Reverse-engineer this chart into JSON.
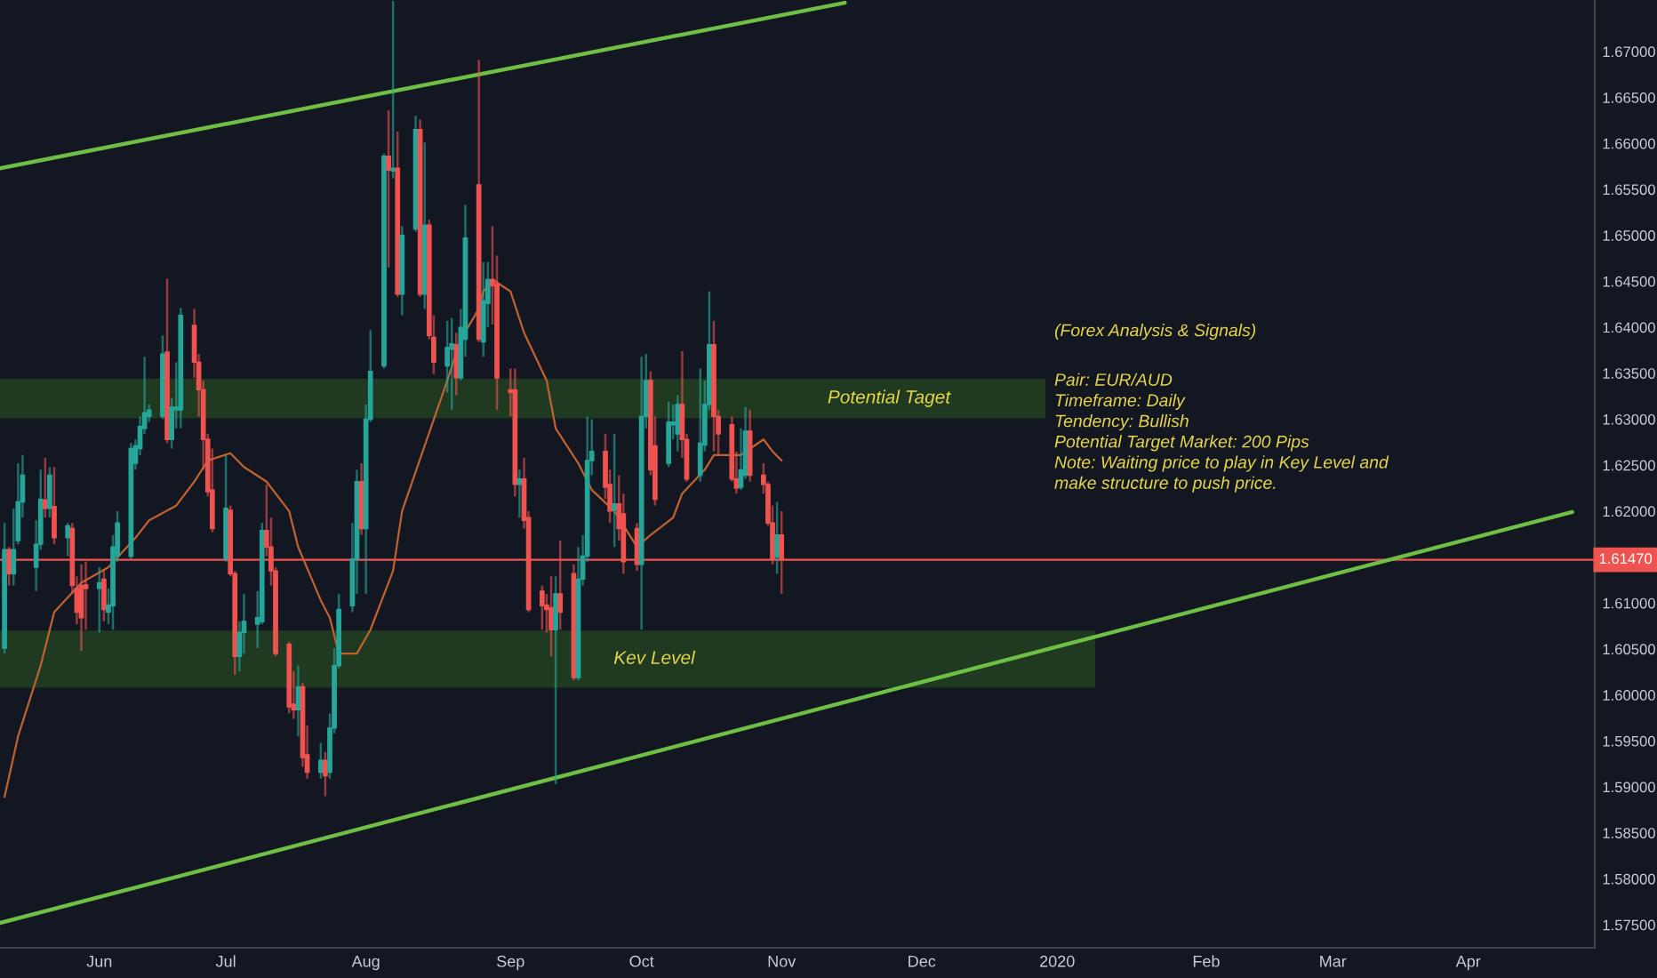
{
  "chart_data": {
    "type": "candlestick",
    "x": [
      "2019-05-13",
      "2019-05-14",
      "2019-05-15",
      "2019-05-16",
      "2019-05-17",
      "2019-05-20",
      "2019-05-21",
      "2019-05-22",
      "2019-05-23",
      "2019-05-24",
      "2019-05-27",
      "2019-05-28",
      "2019-05-29",
      "2019-05-30",
      "2019-05-31",
      "2019-06-03",
      "2019-06-04",
      "2019-06-05",
      "2019-06-06",
      "2019-06-07",
      "2019-06-10",
      "2019-06-11",
      "2019-06-12",
      "2019-06-13",
      "2019-06-14",
      "2019-06-17",
      "2019-06-18",
      "2019-06-19",
      "2019-06-20",
      "2019-06-21",
      "2019-06-24",
      "2019-06-25",
      "2019-06-26",
      "2019-06-27",
      "2019-06-28",
      "2019-07-01",
      "2019-07-02",
      "2019-07-03",
      "2019-07-04",
      "2019-07-05",
      "2019-07-08",
      "2019-07-09",
      "2019-07-10",
      "2019-07-11",
      "2019-07-12",
      "2019-07-15",
      "2019-07-16",
      "2019-07-17",
      "2019-07-18",
      "2019-07-19",
      "2019-07-22",
      "2019-07-23",
      "2019-07-24",
      "2019-07-25",
      "2019-07-26",
      "2019-07-29",
      "2019-07-30",
      "2019-07-31",
      "2019-08-01",
      "2019-08-02",
      "2019-08-05",
      "2019-08-06",
      "2019-08-07",
      "2019-08-08",
      "2019-08-09",
      "2019-08-12",
      "2019-08-13",
      "2019-08-14",
      "2019-08-15",
      "2019-08-16",
      "2019-08-19",
      "2019-08-20",
      "2019-08-21",
      "2019-08-22",
      "2019-08-23",
      "2019-08-26",
      "2019-08-27",
      "2019-08-28",
      "2019-08-29",
      "2019-08-30",
      "2019-09-02",
      "2019-09-03",
      "2019-09-04",
      "2019-09-05",
      "2019-09-06",
      "2019-09-09",
      "2019-09-10",
      "2019-09-11",
      "2019-09-12",
      "2019-09-13",
      "2019-09-16",
      "2019-09-17",
      "2019-09-18",
      "2019-09-19",
      "2019-09-20",
      "2019-09-23",
      "2019-09-24",
      "2019-09-25",
      "2019-09-26",
      "2019-09-27",
      "2019-09-30",
      "2019-10-01",
      "2019-10-02",
      "2019-10-03",
      "2019-10-04",
      "2019-10-07",
      "2019-10-08",
      "2019-10-09",
      "2019-10-10",
      "2019-10-11",
      "2019-10-14",
      "2019-10-15",
      "2019-10-16",
      "2019-10-17",
      "2019-10-18",
      "2019-10-21",
      "2019-10-22",
      "2019-10-23",
      "2019-10-24",
      "2019-10-25",
      "2019-10-28",
      "2019-10-29",
      "2019-10-30",
      "2019-10-31",
      "2019-11-01"
    ],
    "ohlc": [
      [
        1.6051,
        1.6187,
        1.6045,
        1.6158
      ],
      [
        1.6158,
        1.6161,
        1.6119,
        1.6132
      ],
      [
        1.6132,
        1.6203,
        1.6119,
        1.6158
      ],
      [
        1.6168,
        1.6252,
        1.6164,
        1.621
      ],
      [
        1.621,
        1.6261,
        1.6193,
        1.6239
      ],
      [
        1.6139,
        1.619,
        1.6113,
        1.6164
      ],
      [
        1.6164,
        1.6245,
        1.6158,
        1.6213
      ],
      [
        1.6212,
        1.6258,
        1.6193,
        1.6203
      ],
      [
        1.6203,
        1.6248,
        1.6193,
        1.6239
      ],
      [
        1.6205,
        1.6248,
        1.6164,
        1.6171
      ],
      [
        1.6171,
        1.6187,
        1.6151,
        1.6184
      ],
      [
        1.6181,
        1.6187,
        1.611,
        1.6119
      ],
      [
        1.6116,
        1.6129,
        1.6077,
        1.609
      ],
      [
        1.6119,
        1.6142,
        1.6048,
        1.6084
      ],
      [
        1.612,
        1.6145,
        1.6071,
        1.6116
      ],
      [
        1.6116,
        1.6139,
        1.6068,
        1.6122
      ],
      [
        1.6126,
        1.6135,
        1.608,
        1.6093
      ],
      [
        1.609,
        1.6116,
        1.6077,
        1.6098
      ],
      [
        1.6097,
        1.6174,
        1.6071,
        1.6161
      ],
      [
        1.6151,
        1.62,
        1.6145,
        1.6187
      ],
      [
        1.6151,
        1.6274,
        1.6148,
        1.6268
      ],
      [
        1.6252,
        1.6278,
        1.6245,
        1.6271
      ],
      [
        1.6268,
        1.6303,
        1.6261,
        1.6292
      ],
      [
        1.629,
        1.6368,
        1.6284,
        1.6307
      ],
      [
        1.6303,
        1.6316,
        1.6297,
        1.631
      ],
      [
        1.6303,
        1.6391,
        1.63,
        1.6371
      ],
      [
        1.6373,
        1.6453,
        1.6274,
        1.6278
      ],
      [
        1.6278,
        1.6323,
        1.6268,
        1.6313
      ],
      [
        1.631,
        1.6362,
        1.629,
        1.6313
      ],
      [
        1.631,
        1.6421,
        1.629,
        1.6413
      ],
      [
        1.6402,
        1.642,
        1.6345,
        1.6362
      ],
      [
        1.6362,
        1.6371,
        1.6303,
        1.6332
      ],
      [
        1.6332,
        1.6342,
        1.6245,
        1.6278
      ],
      [
        1.6278,
        1.6284,
        1.6216,
        1.6221
      ],
      [
        1.6223,
        1.6268,
        1.6177,
        1.6181
      ],
      [
        1.6148,
        1.6261,
        1.6145,
        1.6203
      ],
      [
        1.6201,
        1.6206,
        1.6129,
        1.6132
      ],
      [
        1.6132,
        1.6135,
        1.6022,
        1.6042
      ],
      [
        1.6042,
        1.608,
        1.6026,
        1.6068
      ],
      [
        1.6068,
        1.611,
        1.6045,
        1.608
      ],
      [
        1.6077,
        1.6113,
        1.6051,
        1.6084
      ],
      [
        1.608,
        1.6187,
        1.6077,
        1.6179
      ],
      [
        1.6179,
        1.6229,
        1.6151,
        1.6161
      ],
      [
        1.6161,
        1.6193,
        1.6119,
        1.6135
      ],
      [
        1.6135,
        1.6139,
        1.6042,
        1.6045
      ],
      [
        1.6055,
        1.6058,
        1.598,
        1.5987
      ],
      [
        1.599,
        1.6026,
        1.5974,
        1.5984
      ],
      [
        1.5984,
        1.6032,
        1.5955,
        1.6009
      ],
      [
        1.6009,
        1.6013,
        1.5922,
        1.5932
      ],
      [
        1.5935,
        1.5967,
        1.5909,
        1.5916
      ],
      [
        1.5916,
        1.5948,
        1.5909,
        1.5929
      ],
      [
        1.5929,
        1.5938,
        1.589,
        1.5912
      ],
      [
        1.5916,
        1.598,
        1.5909,
        1.5964
      ],
      [
        1.5964,
        1.6051,
        1.5958,
        1.6032
      ],
      [
        1.6032,
        1.611,
        1.6029,
        1.6093
      ],
      [
        1.6097,
        1.6187,
        1.609,
        1.6148
      ],
      [
        1.6148,
        1.6245,
        1.611,
        1.6232
      ],
      [
        1.6232,
        1.6252,
        1.6174,
        1.6181
      ],
      [
        1.6181,
        1.6316,
        1.611,
        1.63
      ],
      [
        1.63,
        1.6397,
        1.6297,
        1.6352
      ],
      [
        1.6358,
        1.6589,
        1.6355,
        1.6586
      ],
      [
        1.6586,
        1.6636,
        1.6465,
        1.6571
      ],
      [
        1.657,
        1.6755,
        1.6562,
        1.6573
      ],
      [
        1.6573,
        1.6613,
        1.6433,
        1.6436
      ],
      [
        1.6436,
        1.651,
        1.6413,
        1.65
      ],
      [
        1.6507,
        1.663,
        1.6504,
        1.6615
      ],
      [
        1.6615,
        1.6626,
        1.6433,
        1.6436
      ],
      [
        1.6436,
        1.6601,
        1.642,
        1.6511
      ],
      [
        1.6511,
        1.6517,
        1.6387,
        1.6391
      ],
      [
        1.6389,
        1.6413,
        1.6349,
        1.6362
      ],
      [
        1.6358,
        1.6407,
        1.6329,
        1.6378
      ],
      [
        1.6376,
        1.641,
        1.631,
        1.6382
      ],
      [
        1.6381,
        1.6394,
        1.6326,
        1.6345
      ],
      [
        1.6345,
        1.642,
        1.6342,
        1.64
      ],
      [
        1.6387,
        1.6533,
        1.6368,
        1.6497
      ],
      [
        1.6555,
        1.6691,
        1.6384,
        1.6387
      ],
      [
        1.6384,
        1.6471,
        1.6368,
        1.6429
      ],
      [
        1.6426,
        1.6471,
        1.64,
        1.6452
      ],
      [
        1.6452,
        1.651,
        1.6403,
        1.6445
      ],
      [
        1.6447,
        1.6478,
        1.631,
        1.6345
      ],
      [
        1.6332,
        1.6355,
        1.6303,
        1.6329
      ],
      [
        1.6332,
        1.6355,
        1.6216,
        1.6229
      ],
      [
        1.6229,
        1.6245,
        1.6193,
        1.6235
      ],
      [
        1.6235,
        1.6258,
        1.6181,
        1.619
      ],
      [
        1.6193,
        1.62,
        1.609,
        1.6093
      ],
      [
        1.6113,
        1.6119,
        1.6071,
        1.6097
      ],
      [
        1.6098,
        1.611,
        1.6068,
        1.6093
      ],
      [
        1.6095,
        1.6129,
        1.6042,
        1.6071
      ],
      [
        1.6071,
        1.6129,
        1.5903,
        1.611
      ],
      [
        1.611,
        1.6168,
        1.6071,
        1.609
      ],
      [
        1.6132,
        1.6142,
        1.6016,
        1.6019
      ],
      [
        1.6019,
        1.6161,
        1.6016,
        1.6126
      ],
      [
        1.6126,
        1.6174,
        1.6119,
        1.6151
      ],
      [
        1.6151,
        1.6303,
        1.6145,
        1.6255
      ],
      [
        1.6255,
        1.63,
        1.6239,
        1.6265
      ],
      [
        1.6265,
        1.6284,
        1.6213,
        1.6226
      ],
      [
        1.6229,
        1.6245,
        1.6187,
        1.62
      ],
      [
        1.6201,
        1.6284,
        1.6161,
        1.6208
      ],
      [
        1.6208,
        1.6239,
        1.6168,
        1.6181
      ],
      [
        1.6197,
        1.6219,
        1.6132,
        1.6145
      ],
      [
        1.6181,
        1.6187,
        1.6135,
        1.6142
      ],
      [
        1.6142,
        1.6368,
        1.6071,
        1.6303
      ],
      [
        1.6303,
        1.6371,
        1.629,
        1.6342
      ],
      [
        1.6342,
        1.6352,
        1.6239,
        1.6245
      ],
      [
        1.6271,
        1.6303,
        1.6206,
        1.6213
      ],
      [
        1.6252,
        1.6319,
        1.6248,
        1.6297
      ],
      [
        1.6294,
        1.6316,
        1.6278,
        1.6297
      ],
      [
        1.6284,
        1.6326,
        1.6265,
        1.6316
      ],
      [
        1.6316,
        1.6374,
        1.6258,
        1.6278
      ],
      [
        1.6278,
        1.6284,
        1.6232,
        1.6235
      ],
      [
        1.6239,
        1.6355,
        1.6232,
        1.6274
      ],
      [
        1.6272,
        1.6342,
        1.6265,
        1.6316
      ],
      [
        1.6316,
        1.6439,
        1.631,
        1.6381
      ],
      [
        1.6381,
        1.6407,
        1.6265,
        1.6303
      ],
      [
        1.6303,
        1.631,
        1.6261,
        1.6284
      ],
      [
        1.6294,
        1.6303,
        1.6232,
        1.6235
      ],
      [
        1.6235,
        1.6265,
        1.6219,
        1.6225
      ],
      [
        1.6226,
        1.629,
        1.6223,
        1.6245
      ],
      [
        1.6239,
        1.6313,
        1.6235,
        1.6287
      ],
      [
        1.6287,
        1.631,
        1.6232,
        1.6239
      ],
      [
        1.6239,
        1.6252,
        1.6219,
        1.6229
      ],
      [
        1.6229,
        1.6232,
        1.6184,
        1.6187
      ],
      [
        1.6187,
        1.6206,
        1.6142,
        1.6148
      ],
      [
        1.615,
        1.621,
        1.6132,
        1.6174
      ],
      [
        1.6174,
        1.62,
        1.611,
        1.6147
      ]
    ],
    "colors": [
      "#26a69a",
      "#ef5350",
      "#26a69a",
      "#26a69a",
      "#26a69a",
      "#26a69a",
      "#26a69a",
      "#ef5350",
      "#26a69a",
      "#ef5350",
      "#26a69a",
      "#ef5350",
      "#ef5350",
      "#ef5350",
      "#ef5350",
      "#26a69a",
      "#ef5350",
      "#26a69a",
      "#26a69a",
      "#26a69a",
      "#26a69a",
      "#26a69a",
      "#26a69a",
      "#26a69a",
      "#26a69a",
      "#26a69a",
      "#ef5350",
      "#26a69a",
      "#26a69a",
      "#26a69a",
      "#ef5350",
      "#ef5350",
      "#ef5350",
      "#ef5350",
      "#ef5350",
      "#26a69a",
      "#ef5350",
      "#ef5350",
      "#26a69a",
      "#26a69a",
      "#26a69a",
      "#26a69a",
      "#ef5350",
      "#ef5350",
      "#ef5350",
      "#ef5350",
      "#ef5350",
      "#26a69a",
      "#ef5350",
      "#ef5350",
      "#26a69a",
      "#ef5350",
      "#26a69a",
      "#26a69a",
      "#26a69a",
      "#26a69a",
      "#26a69a",
      "#ef5350",
      "#26a69a",
      "#26a69a",
      "#26a69a",
      "#ef5350",
      "#26a69a",
      "#ef5350",
      "#26a69a",
      "#26a69a",
      "#ef5350",
      "#26a69a",
      "#ef5350",
      "#ef5350",
      "#26a69a",
      "#26a69a",
      "#ef5350",
      "#26a69a",
      "#26a69a",
      "#ef5350",
      "#26a69a",
      "#26a69a",
      "#ef5350",
      "#ef5350",
      "#ef5350",
      "#ef5350",
      "#26a69a",
      "#ef5350",
      "#ef5350",
      "#ef5350",
      "#ef5350",
      "#ef5350",
      "#26a69a",
      "#ef5350",
      "#ef5350",
      "#26a69a",
      "#26a69a",
      "#26a69a",
      "#26a69a",
      "#ef5350",
      "#ef5350",
      "#26a69a",
      "#ef5350",
      "#ef5350",
      "#ef5350",
      "#26a69a",
      "#26a69a",
      "#ef5350",
      "#ef5350",
      "#26a69a",
      "#26a69a",
      "#26a69a",
      "#ef5350",
      "#ef5350",
      "#26a69a",
      "#26a69a",
      "#26a69a",
      "#ef5350",
      "#ef5350",
      "#ef5350",
      "#ef5350",
      "#26a69a",
      "#26a69a",
      "#ef5350",
      "#ef5350",
      "#ef5350",
      "#ef5350",
      "#26a69a",
      "#ef5350"
    ],
    "series": [
      {
        "type": "line",
        "color": "#c0622f",
        "x": [
          "2019-05-13",
          "2019-05-16",
          "2019-05-21",
          "2019-05-24",
          "2019-05-30",
          "2019-06-05",
          "2019-06-11",
          "2019-06-14",
          "2019-06-20",
          "2019-06-24",
          "2019-06-27",
          "2019-07-02",
          "2019-07-05",
          "2019-07-10",
          "2019-07-15",
          "2019-07-17",
          "2019-07-22",
          "2019-07-24",
          "2019-07-26",
          "2019-07-30",
          "2019-08-02",
          "2019-08-07",
          "2019-08-09",
          "2019-08-14",
          "2019-08-19",
          "2019-08-22",
          "2019-08-26",
          "2019-08-27",
          "2019-08-29",
          "2019-09-02",
          "2019-09-05",
          "2019-09-10",
          "2019-09-12",
          "2019-09-17",
          "2019-09-20",
          "2019-09-25",
          "2019-09-30",
          "2019-10-03",
          "2019-10-08",
          "2019-10-10",
          "2019-10-15",
          "2019-10-17",
          "2019-10-23",
          "2019-10-28",
          "2019-10-30",
          "2019-11-01"
        ],
        "values": [
          1.5889,
          1.5955,
          1.6032,
          1.609,
          1.6122,
          1.6139,
          1.6171,
          1.619,
          1.6206,
          1.6232,
          1.6255,
          1.6263,
          1.6248,
          1.6232,
          1.62,
          1.6161,
          1.6103,
          1.6084,
          1.6045,
          1.6045,
          1.6071,
          1.6135,
          1.62,
          1.6271,
          1.6342,
          1.6387,
          1.642,
          1.6439,
          1.6452,
          1.6439,
          1.6394,
          1.6342,
          1.629,
          1.6252,
          1.6223,
          1.62,
          1.6161,
          1.6174,
          1.6193,
          1.6219,
          1.6245,
          1.6261,
          1.6261,
          1.6278,
          1.6265,
          1.6255
        ]
      },
      {
        "type": "line",
        "color": "#6fbf45",
        "x": [
          "2019-05-12",
          "2019-11-15"
        ],
        "values": [
          1.6573,
          1.6753
        ]
      },
      {
        "type": "line",
        "color": "#6fbf45",
        "x": [
          "2019-05-12",
          "2020-04-24"
        ],
        "values": [
          1.5752,
          1.6199
        ]
      }
    ],
    "bands": [
      {
        "axis": "y",
        "from": 1.6301,
        "to": 1.6344,
        "label": "Potential Taget",
        "color": "#1f3a20"
      },
      {
        "axis": "y",
        "from": 1.6008,
        "to": 1.607,
        "label": "Kev Level",
        "color": "#1f3a20"
      }
    ],
    "ref_lines": [
      {
        "axis": "y",
        "value": 1.6147,
        "label": "1.61470",
        "color": "#ef5350"
      }
    ],
    "annotations": [
      "(Forex Analysis & Signals)",
      "Pair: EUR/AUD",
      "Timeframe: Daily",
      "Tendency: Bullish",
      "Potential Target Market: 200 Pips",
      "Note: Waiting price to play in Key Level and",
      "make structure to push price."
    ],
    "xlim": [
      "2019-05-12",
      "2020-04-29"
    ],
    "xticks": [
      {
        "value": "2019-06-03",
        "label": "Jun"
      },
      {
        "value": "2019-07-01",
        "label": "Jul"
      },
      {
        "value": "2019-08-01",
        "label": "Aug"
      },
      {
        "value": "2019-09-02",
        "label": "Sep"
      },
      {
        "value": "2019-10-01",
        "label": "Oct"
      },
      {
        "value": "2019-11-01",
        "label": "Nov"
      },
      {
        "value": "2019-12-02",
        "label": "Dec"
      },
      {
        "value": "2020-01-01",
        "label": "2020"
      },
      {
        "value": "2020-02-03",
        "label": "Feb"
      },
      {
        "value": "2020-03-02",
        "label": "Mar"
      },
      {
        "value": "2020-04-01",
        "label": "Apr"
      }
    ],
    "ylim": [
      1.5725,
      1.6756
    ],
    "yticks": [
      {
        "value": 1.575,
        "label": "1.57500"
      },
      {
        "value": 1.58,
        "label": "1.58000"
      },
      {
        "value": 1.585,
        "label": "1.58500"
      },
      {
        "value": 1.59,
        "label": "1.59000"
      },
      {
        "value": 1.595,
        "label": "1.59500"
      },
      {
        "value": 1.6,
        "label": "1.60000"
      },
      {
        "value": 1.605,
        "label": "1.60500"
      },
      {
        "value": 1.61,
        "label": "1.61000"
      },
      {
        "value": 1.62,
        "label": "1.62000"
      },
      {
        "value": 1.625,
        "label": "1.62500"
      },
      {
        "value": 1.63,
        "label": "1.63000"
      },
      {
        "value": 1.635,
        "label": "1.63500"
      },
      {
        "value": 1.64,
        "label": "1.64000"
      },
      {
        "value": 1.645,
        "label": "1.64500"
      },
      {
        "value": 1.65,
        "label": "1.65000"
      },
      {
        "value": 1.655,
        "label": "1.65500"
      },
      {
        "value": 1.66,
        "label": "1.66000"
      },
      {
        "value": 1.665,
        "label": "1.66500"
      },
      {
        "value": 1.67,
        "label": "1.67000"
      }
    ]
  }
}
